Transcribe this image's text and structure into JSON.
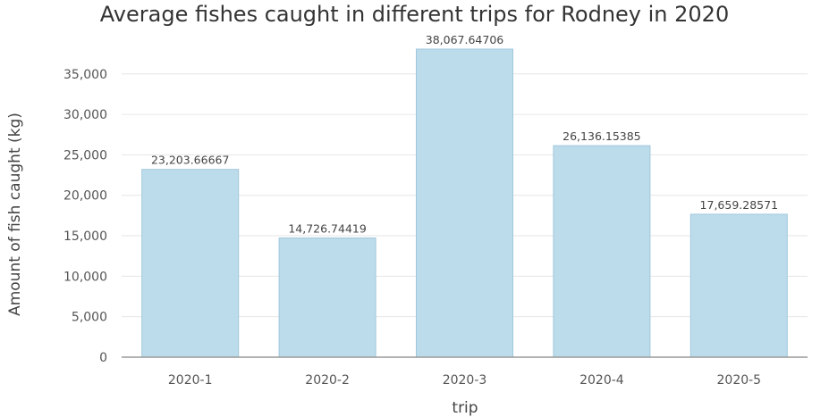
{
  "chart_data": {
    "type": "bar",
    "title": "Average fishes caught in different trips for Rodney in 2020",
    "xlabel": "trip",
    "ylabel": "Amount of fish caught (kg)",
    "categories": [
      "2020-1",
      "2020-2",
      "2020-3",
      "2020-4",
      "2020-5"
    ],
    "values": [
      23203.66667,
      14726.74419,
      38067.64706,
      26136.15385,
      17659.28571
    ],
    "data_labels": [
      "23,203.66667",
      "14,726.74419",
      "38,067.64706",
      "26,136.15385",
      "17,659.28571"
    ],
    "ylim": [
      0,
      38067.64706
    ],
    "yticks": [
      0,
      5000,
      10000,
      15000,
      20000,
      25000,
      30000,
      35000
    ],
    "ytick_labels": [
      "0",
      "5,000",
      "10,000",
      "15,000",
      "20,000",
      "25,000",
      "30,000",
      "35,000"
    ],
    "grid": true,
    "colors": {
      "bar_fill": "#bddceb",
      "bar_stroke": "#9fc7dc"
    }
  }
}
